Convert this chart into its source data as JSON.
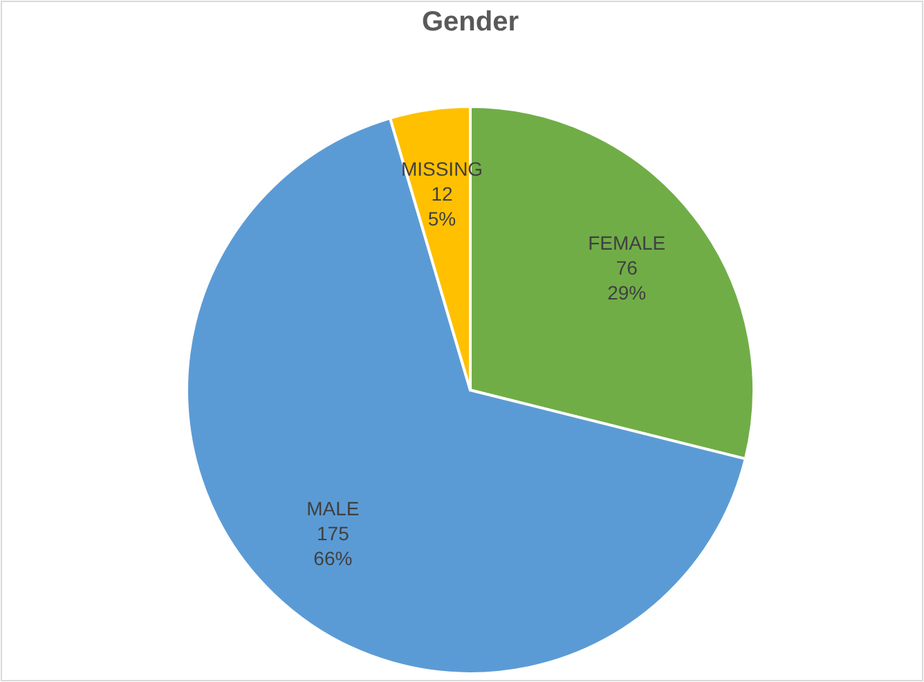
{
  "chart_data": {
    "type": "pie",
    "title": "Gender",
    "categories": [
      "FEMALE",
      "MALE",
      "MISSING"
    ],
    "values": [
      76,
      175,
      12
    ],
    "colors": [
      "#70ad47",
      "#5b9bd5",
      "#ffc000"
    ],
    "value_labels": [
      "76\n29%",
      "175\n66%",
      "12\n5%"
    ],
    "legend": false
  }
}
